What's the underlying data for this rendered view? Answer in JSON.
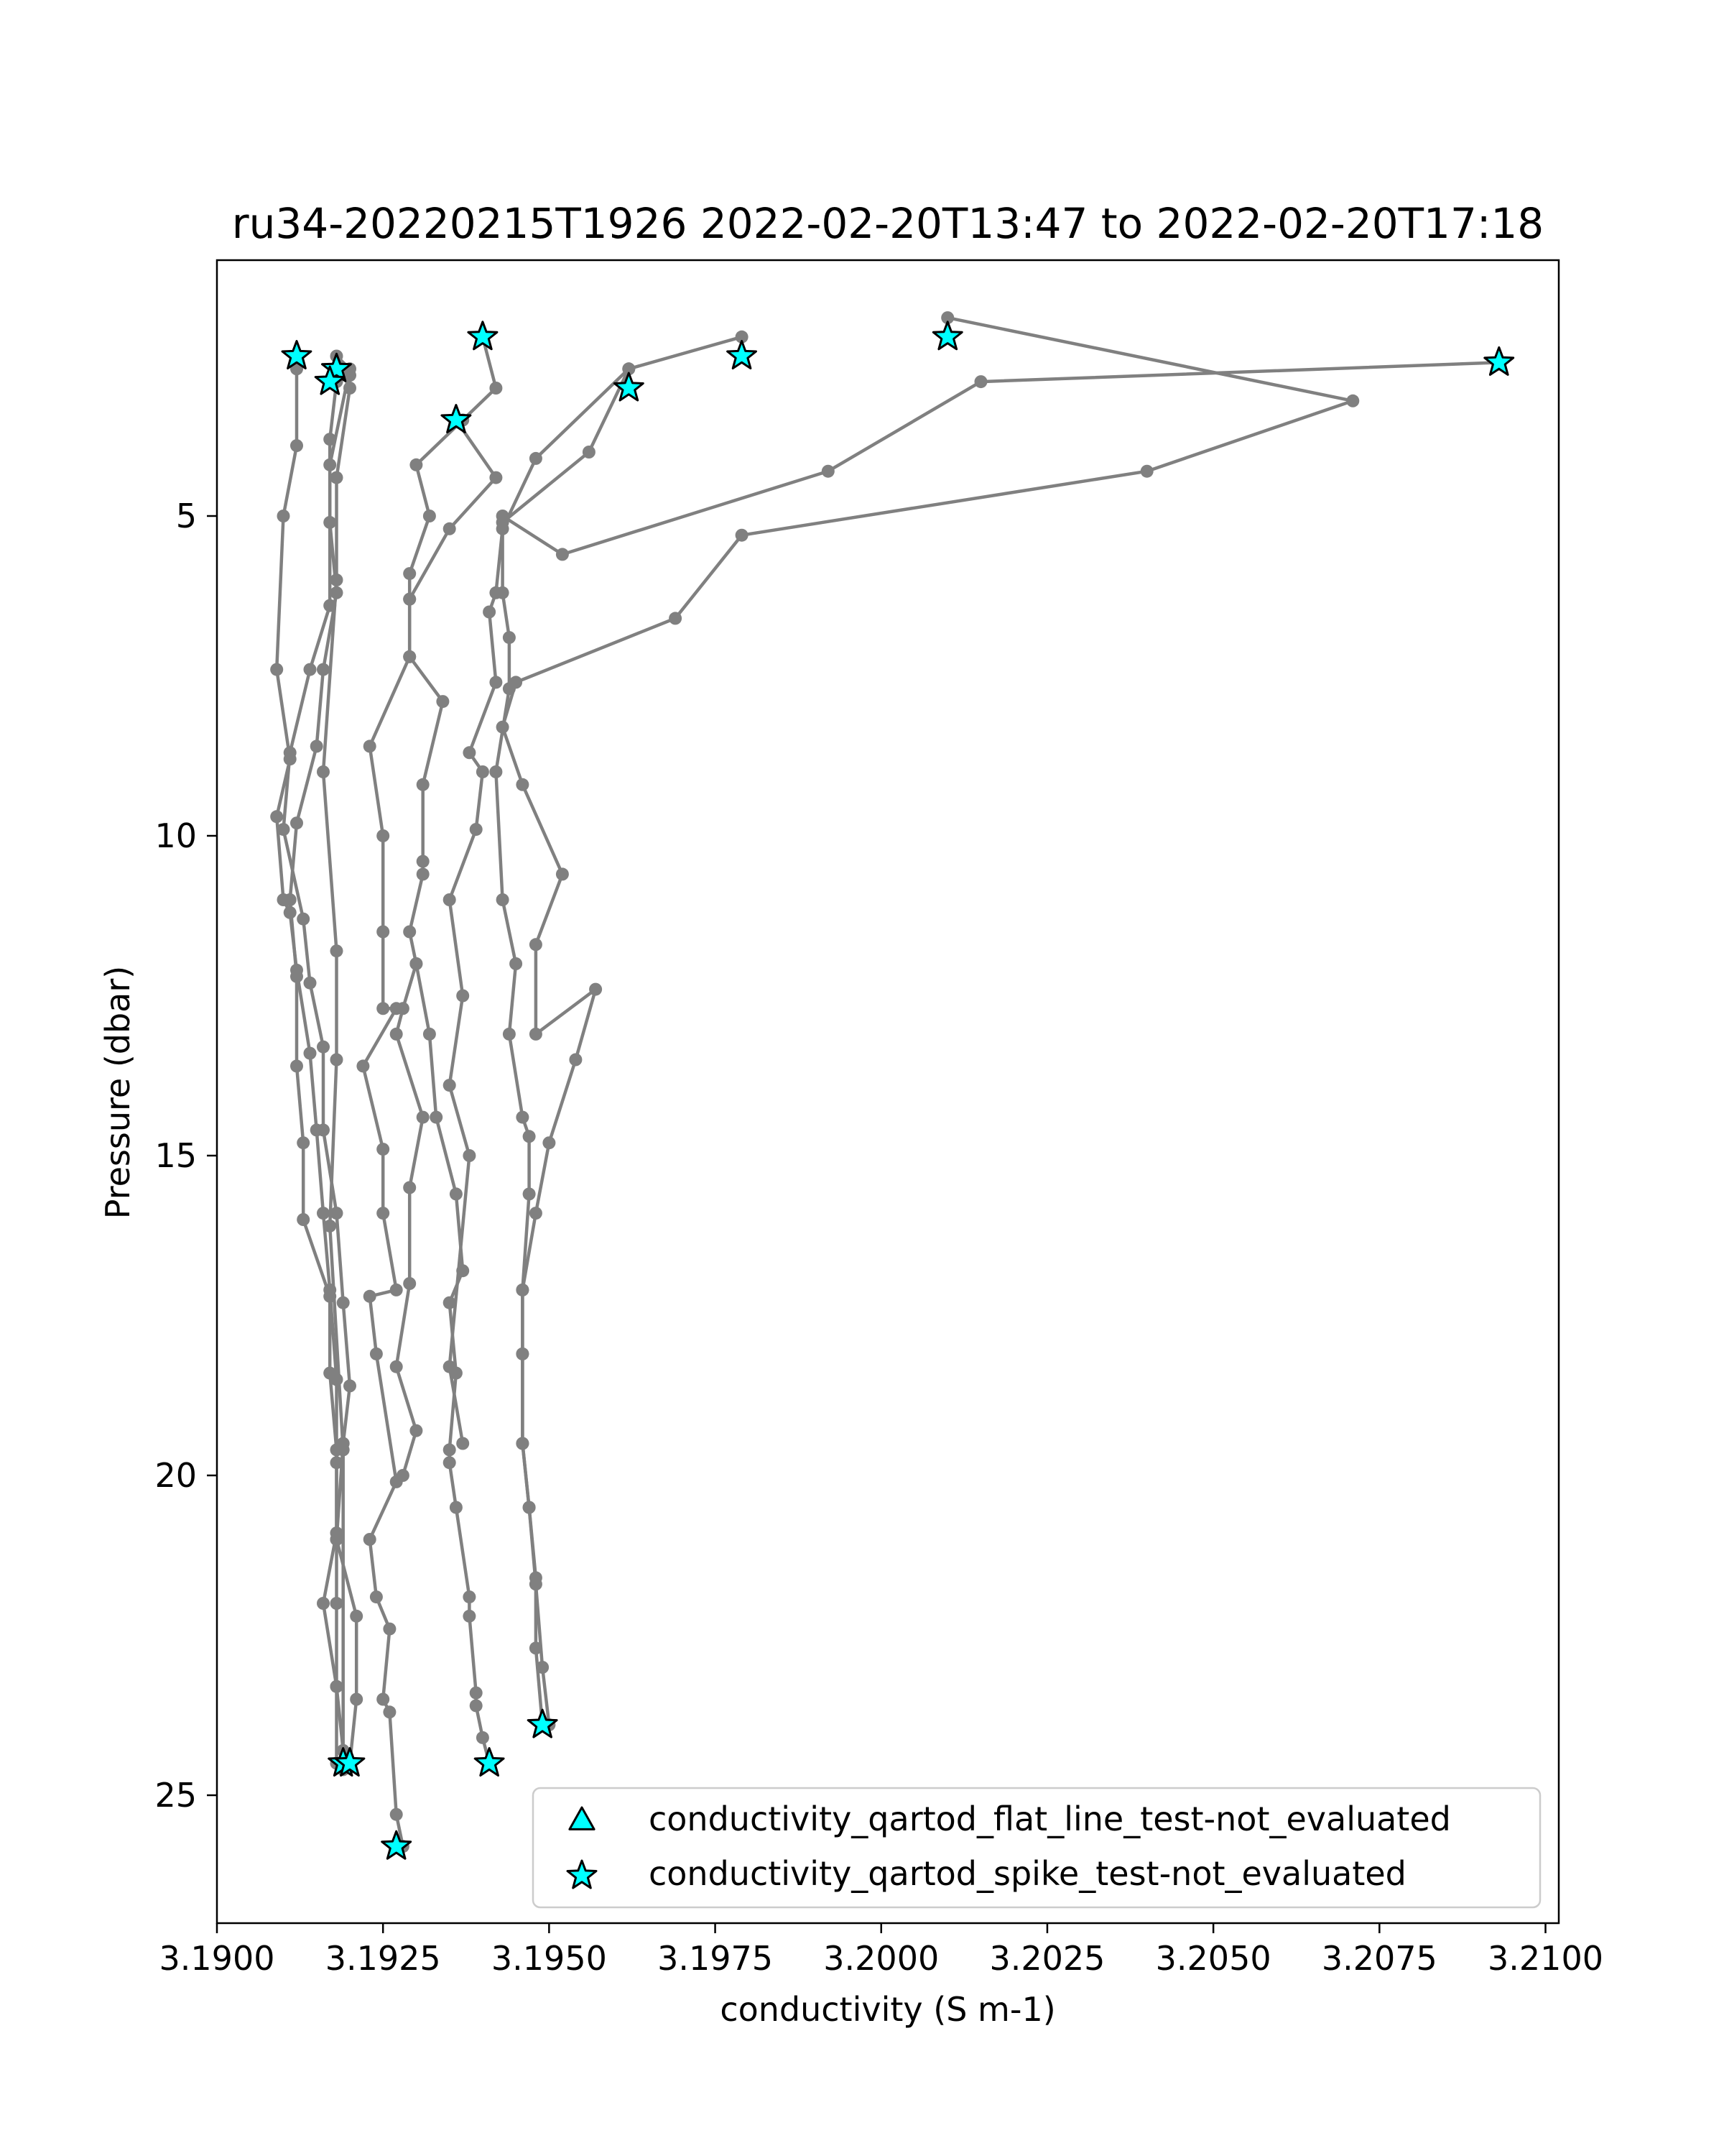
{
  "chart_data": {
    "type": "scatter",
    "title": "ru34-20220215T1926 2022-02-20T13:47 to 2022-02-20T17:18",
    "xlabel": "conductivity (S m-1)",
    "ylabel": "Pressure (dbar)",
    "xlim": [
      3.19,
      3.2102
    ],
    "ylim": [
      27.0,
      1.0
    ],
    "y_inverted": true,
    "xticks": [
      3.19,
      3.1925,
      3.195,
      3.1975,
      3.2,
      3.2025,
      3.205,
      3.2075,
      3.21
    ],
    "xtick_labels": [
      "3.1900",
      "3.1925",
      "3.1950",
      "3.1975",
      "3.2000",
      "3.2025",
      "3.2050",
      "3.2075",
      "3.2100"
    ],
    "yticks": [
      5,
      10,
      15,
      20,
      25
    ],
    "ytick_labels": [
      "5",
      "10",
      "15",
      "20",
      "25"
    ],
    "grid": false,
    "legend_position": "lower-right",
    "colors": {
      "line": "#808080",
      "marker_fill": "#00ffff",
      "marker_edge": "#000000",
      "axes": "#000000",
      "legend_border": "#cccccc"
    },
    "legend": [
      {
        "label": "conductivity_qartod_flat_line_test-not_evaluated",
        "marker": "triangle"
      },
      {
        "label": "conductivity_qartod_spike_test-not_evaluated",
        "marker": "star"
      }
    ],
    "series": [
      {
        "x": [
          3.1912,
          3.1912,
          3.191,
          3.1909,
          3.1911,
          3.1909,
          3.191,
          3.1911,
          3.1912,
          3.1914,
          3.1915,
          3.1916,
          3.1917,
          3.1918,
          3.1918,
          3.1918,
          3.1918,
          3.1918,
          3.1918,
          3.1919,
          3.1919,
          3.192
        ],
        "y": [
          2.7,
          3.9,
          5.0,
          7.4,
          8.8,
          9.7,
          11.0,
          11.2,
          12.1,
          13.4,
          14.6,
          15.9,
          17.1,
          18.5,
          19.8,
          21.0,
          22.0,
          23.3,
          24.5,
          24.6,
          24.5,
          24.5
        ]
      },
      {
        "x": [
          3.1918,
          3.1917,
          3.1917,
          3.1918,
          3.1916,
          3.1915,
          3.1912,
          3.1911,
          3.1912,
          3.1912,
          3.1913,
          3.1913,
          3.1917,
          3.1917,
          3.1918,
          3.1918,
          3.1916,
          3.1918,
          3.1919,
          3.192,
          3.192
        ],
        "y": [
          2.9,
          3.8,
          5.1,
          6.2,
          7.4,
          8.6,
          9.8,
          11.0,
          12.2,
          13.6,
          14.8,
          16.0,
          17.2,
          18.4,
          19.6,
          20.9,
          22.0,
          23.3,
          24.3,
          24.5,
          24.5
        ]
      },
      {
        "x": [
          3.1918,
          3.192,
          3.1917,
          3.1917,
          3.1914,
          3.1911,
          3.191,
          3.1913,
          3.1914,
          3.1916,
          3.1916,
          3.1918,
          3.1919,
          3.192,
          3.1919,
          3.1918,
          3.1921,
          3.1921,
          3.192
        ],
        "y": [
          2.5,
          2.7,
          4.2,
          6.4,
          7.4,
          8.7,
          9.9,
          11.3,
          12.3,
          13.3,
          14.6,
          15.9,
          17.3,
          18.6,
          19.5,
          21.0,
          22.2,
          23.5,
          24.5
        ]
      },
      {
        "x": [
          3.1918,
          3.192,
          3.192,
          3.1918,
          3.1918,
          3.1916,
          3.1918,
          3.1918,
          3.1917,
          3.1919,
          3.1919
        ],
        "y": [
          2.8,
          2.8,
          3.0,
          4.4,
          6.0,
          9.0,
          11.8,
          13.5,
          16.1,
          19.6,
          24.5
        ]
      },
      {
        "x": [
          3.194,
          3.1942,
          3.1937,
          3.193,
          3.1932,
          3.1929,
          3.1929,
          3.1929,
          3.1923,
          3.1925,
          3.1925,
          3.1925,
          3.1927,
          3.1922,
          3.1925,
          3.1925,
          3.1927,
          3.1923,
          3.1924,
          3.1927,
          3.1923,
          3.1924,
          3.1926,
          3.1925,
          3.1926,
          3.1927,
          3.1928
        ],
        "y": [
          2.2,
          3.0,
          3.5,
          4.2,
          5.0,
          5.9,
          6.3,
          7.2,
          8.6,
          10.0,
          11.5,
          12.7,
          12.7,
          13.6,
          14.9,
          15.9,
          17.1,
          17.2,
          18.1,
          20.1,
          21.0,
          21.9,
          22.4,
          23.5,
          23.7,
          25.3,
          25.8
        ]
      },
      {
        "x": [
          3.1936,
          3.1942,
          3.1935,
          3.1929,
          3.1929,
          3.1934,
          3.1931,
          3.1931,
          3.1931,
          3.1929,
          3.193,
          3.1928,
          3.1927,
          3.1931,
          3.1929,
          3.1929,
          3.1927,
          3.193,
          3.1928
        ],
        "y": [
          3.5,
          4.4,
          5.2,
          6.3,
          7.2,
          7.9,
          9.2,
          10.4,
          10.6,
          11.5,
          12.0,
          12.7,
          13.1,
          14.4,
          15.5,
          17.0,
          18.3,
          19.3,
          20.0
        ]
      },
      {
        "x": [
          3.193,
          3.1932,
          3.1933,
          3.1936,
          3.1937,
          3.1935,
          3.1936,
          3.1935,
          3.1935,
          3.1936,
          3.1938,
          3.1938,
          3.1939,
          3.1939,
          3.194,
          3.1941
        ],
        "y": [
          12.0,
          13.1,
          14.4,
          15.6,
          16.8,
          17.3,
          18.4,
          19.6,
          19.8,
          20.5,
          21.9,
          22.2,
          23.4,
          23.6,
          24.1,
          24.5
        ]
      },
      {
        "x": [
          3.1962,
          3.1948,
          3.1943,
          3.1942,
          3.1941,
          3.1942,
          3.1938,
          3.194,
          3.1939,
          3.1935,
          3.1937,
          3.1935,
          3.1938,
          3.1935,
          3.1937
        ],
        "y": [
          2.7,
          4.1,
          5.2,
          6.2,
          6.5,
          7.6,
          8.7,
          9.0,
          9.9,
          11.0,
          12.5,
          13.9,
          15.0,
          18.3,
          19.5
        ]
      },
      {
        "x": [
          3.1979,
          3.1962,
          3.1956,
          3.1943,
          3.1943,
          3.1944,
          3.1944,
          3.1942,
          3.1943,
          3.1945,
          3.1944,
          3.1946,
          3.1947,
          3.1947,
          3.1946,
          3.1946,
          3.1946,
          3.1947,
          3.1948,
          3.1949,
          3.195
        ],
        "y": [
          2.2,
          2.7,
          4.0,
          5.1,
          6.2,
          6.9,
          7.7,
          9.0,
          11.0,
          12.0,
          13.1,
          14.4,
          14.7,
          15.6,
          17.1,
          18.1,
          19.5,
          20.5,
          21.7,
          23.0,
          23.9
        ]
      },
      {
        "x": [
          3.201,
          3.2071,
          3.204,
          3.1979,
          3.1969,
          3.1945,
          3.1943,
          3.1946,
          3.1952,
          3.1948,
          3.1948,
          3.1957,
          3.1954,
          3.195,
          3.1948,
          3.1946,
          3.1946,
          3.1946,
          3.1947,
          3.1948,
          3.1948,
          3.1949
        ],
        "y": [
          1.9,
          3.2,
          4.3,
          5.3,
          6.6,
          7.6,
          8.3,
          9.2,
          10.6,
          11.7,
          13.1,
          12.4,
          13.5,
          14.8,
          15.9,
          17.1,
          18.1,
          19.5,
          20.5,
          21.6,
          22.7,
          23.9
        ]
      },
      {
        "x": [
          3.2093,
          3.2015,
          3.1992,
          3.1952,
          3.1943
        ],
        "y": [
          2.6,
          2.9,
          4.3,
          5.6,
          5.0
        ]
      }
    ],
    "flagged_points": {
      "marker": "star",
      "x": [
        3.1912,
        3.1918,
        3.1917,
        3.1936,
        3.194,
        3.1962,
        3.1979,
        3.201,
        3.2093,
        3.1919,
        3.192,
        3.1927,
        3.1941,
        3.1949
      ],
      "y": [
        2.5,
        2.7,
        2.9,
        3.5,
        2.2,
        3.0,
        2.5,
        2.2,
        2.6,
        24.5,
        24.5,
        25.8,
        24.5,
        23.9
      ]
    }
  }
}
